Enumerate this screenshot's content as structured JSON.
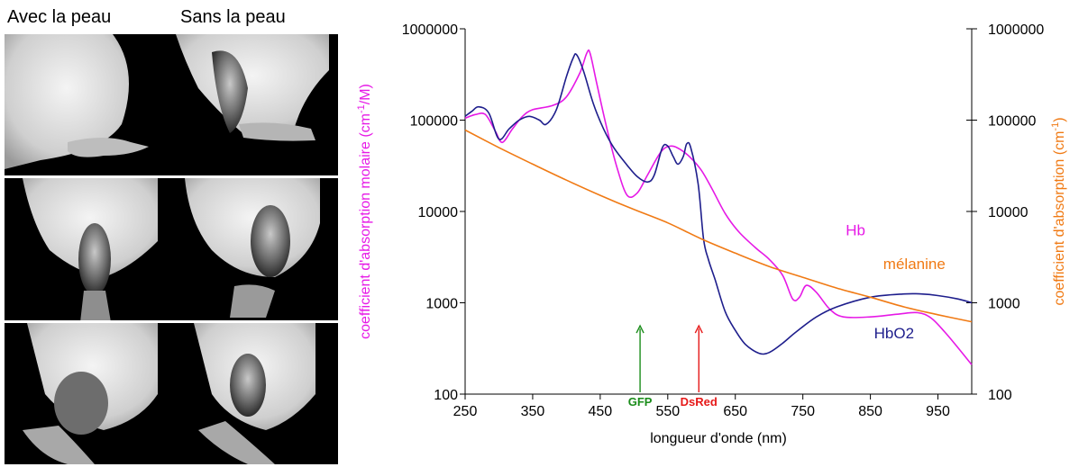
{
  "photos": {
    "column_headings": [
      "Avec la peau",
      "Sans la peau"
    ]
  },
  "chart_data": {
    "type": "line",
    "xlabel": "longueur d'onde (nm)",
    "ylabel_left": {
      "text": "coefficient d'absorption molaire  (cm",
      "sup": "-1",
      "rest": "/M)"
    },
    "ylabel_right": {
      "text": "coefficient d'absorption (cm",
      "sup": "-1",
      "rest": ")"
    },
    "xlim": [
      250,
      1000
    ],
    "ylim": [
      100,
      1000000
    ],
    "yscale": "log",
    "x_ticks": [
      "250",
      "350",
      "450",
      "550",
      "650",
      "750",
      "850",
      "950"
    ],
    "x_tick_values": [
      250,
      350,
      450,
      550,
      650,
      750,
      850,
      950
    ],
    "y_ticks": [
      "100",
      "1000",
      "10000",
      "100000",
      "1000000"
    ],
    "y_tick_values": [
      100,
      1000,
      10000,
      100000,
      1000000
    ],
    "grid": false,
    "series": [
      {
        "name": "Hb",
        "color": "#e619e6",
        "points": [
          [
            250,
            105000
          ],
          [
            265,
            115000
          ],
          [
            280,
            115000
          ],
          [
            295,
            75000
          ],
          [
            305,
            57000
          ],
          [
            320,
            80000
          ],
          [
            335,
            110000
          ],
          [
            350,
            130000
          ],
          [
            380,
            145000
          ],
          [
            400,
            180000
          ],
          [
            420,
            330000
          ],
          [
            430,
            540000
          ],
          [
            435,
            540000
          ],
          [
            445,
            250000
          ],
          [
            460,
            80000
          ],
          [
            475,
            30000
          ],
          [
            490,
            15000
          ],
          [
            505,
            16000
          ],
          [
            520,
            25000
          ],
          [
            540,
            45000
          ],
          [
            555,
            52000
          ],
          [
            570,
            47000
          ],
          [
            585,
            38000
          ],
          [
            600,
            28000
          ],
          [
            615,
            18000
          ],
          [
            635,
            9500
          ],
          [
            655,
            6000
          ],
          [
            680,
            4000
          ],
          [
            700,
            3000
          ],
          [
            720,
            2000
          ],
          [
            735,
            1100
          ],
          [
            745,
            1150
          ],
          [
            755,
            1550
          ],
          [
            770,
            1300
          ],
          [
            790,
            850
          ],
          [
            810,
            700
          ],
          [
            850,
            700
          ],
          [
            890,
            750
          ],
          [
            920,
            780
          ],
          [
            940,
            680
          ],
          [
            960,
            480
          ],
          [
            980,
            320
          ],
          [
            1000,
            210
          ]
        ]
      },
      {
        "name": "HbO2",
        "color": "#1e1e8c",
        "points": [
          [
            250,
            110000
          ],
          [
            260,
            125000
          ],
          [
            270,
            140000
          ],
          [
            285,
            120000
          ],
          [
            300,
            62000
          ],
          [
            315,
            80000
          ],
          [
            330,
            100000
          ],
          [
            345,
            110000
          ],
          [
            360,
            100000
          ],
          [
            370,
            90000
          ],
          [
            385,
            130000
          ],
          [
            400,
            300000
          ],
          [
            410,
            480000
          ],
          [
            415,
            520000
          ],
          [
            425,
            350000
          ],
          [
            440,
            150000
          ],
          [
            455,
            80000
          ],
          [
            470,
            50000
          ],
          [
            490,
            32000
          ],
          [
            505,
            24000
          ],
          [
            520,
            21000
          ],
          [
            530,
            25000
          ],
          [
            542,
            50000
          ],
          [
            550,
            52000
          ],
          [
            558,
            40000
          ],
          [
            565,
            33000
          ],
          [
            573,
            40000
          ],
          [
            578,
            55000
          ],
          [
            584,
            50000
          ],
          [
            595,
            20000
          ],
          [
            603,
            5000
          ],
          [
            610,
            3000
          ],
          [
            620,
            1800
          ],
          [
            635,
            800
          ],
          [
            650,
            500
          ],
          [
            665,
            350
          ],
          [
            685,
            280
          ],
          [
            700,
            285
          ],
          [
            720,
            360
          ],
          [
            740,
            480
          ],
          [
            770,
            700
          ],
          [
            800,
            900
          ],
          [
            850,
            1150
          ],
          [
            900,
            1250
          ],
          [
            925,
            1250
          ],
          [
            950,
            1200
          ],
          [
            980,
            1100
          ],
          [
            1000,
            1000
          ]
        ]
      },
      {
        "name": "mélanine",
        "color": "#f07a14",
        "points": [
          [
            250,
            78000
          ],
          [
            300,
            50000
          ],
          [
            350,
            33000
          ],
          [
            400,
            22000
          ],
          [
            450,
            15000
          ],
          [
            500,
            10500
          ],
          [
            550,
            7500
          ],
          [
            600,
            5000
          ],
          [
            650,
            3500
          ],
          [
            700,
            2500
          ],
          [
            750,
            1900
          ],
          [
            800,
            1450
          ],
          [
            850,
            1150
          ],
          [
            900,
            900
          ],
          [
            950,
            740
          ],
          [
            1000,
            620
          ]
        ]
      }
    ],
    "annotations": [
      {
        "text": "Hb",
        "color": "#e619e6",
        "x": 828,
        "y": 5500
      },
      {
        "text": "mélanine",
        "color": "#f07a14",
        "x": 915,
        "y": 2350
      },
      {
        "text": "HbO2",
        "color": "#1e1e8c",
        "x": 885,
        "y": 410
      }
    ],
    "markers": [
      {
        "label": "GFP",
        "color": "#1a8c1a",
        "x": 509
      },
      {
        "label": "DsRed",
        "color": "#e61919",
        "x": 596
      }
    ]
  }
}
